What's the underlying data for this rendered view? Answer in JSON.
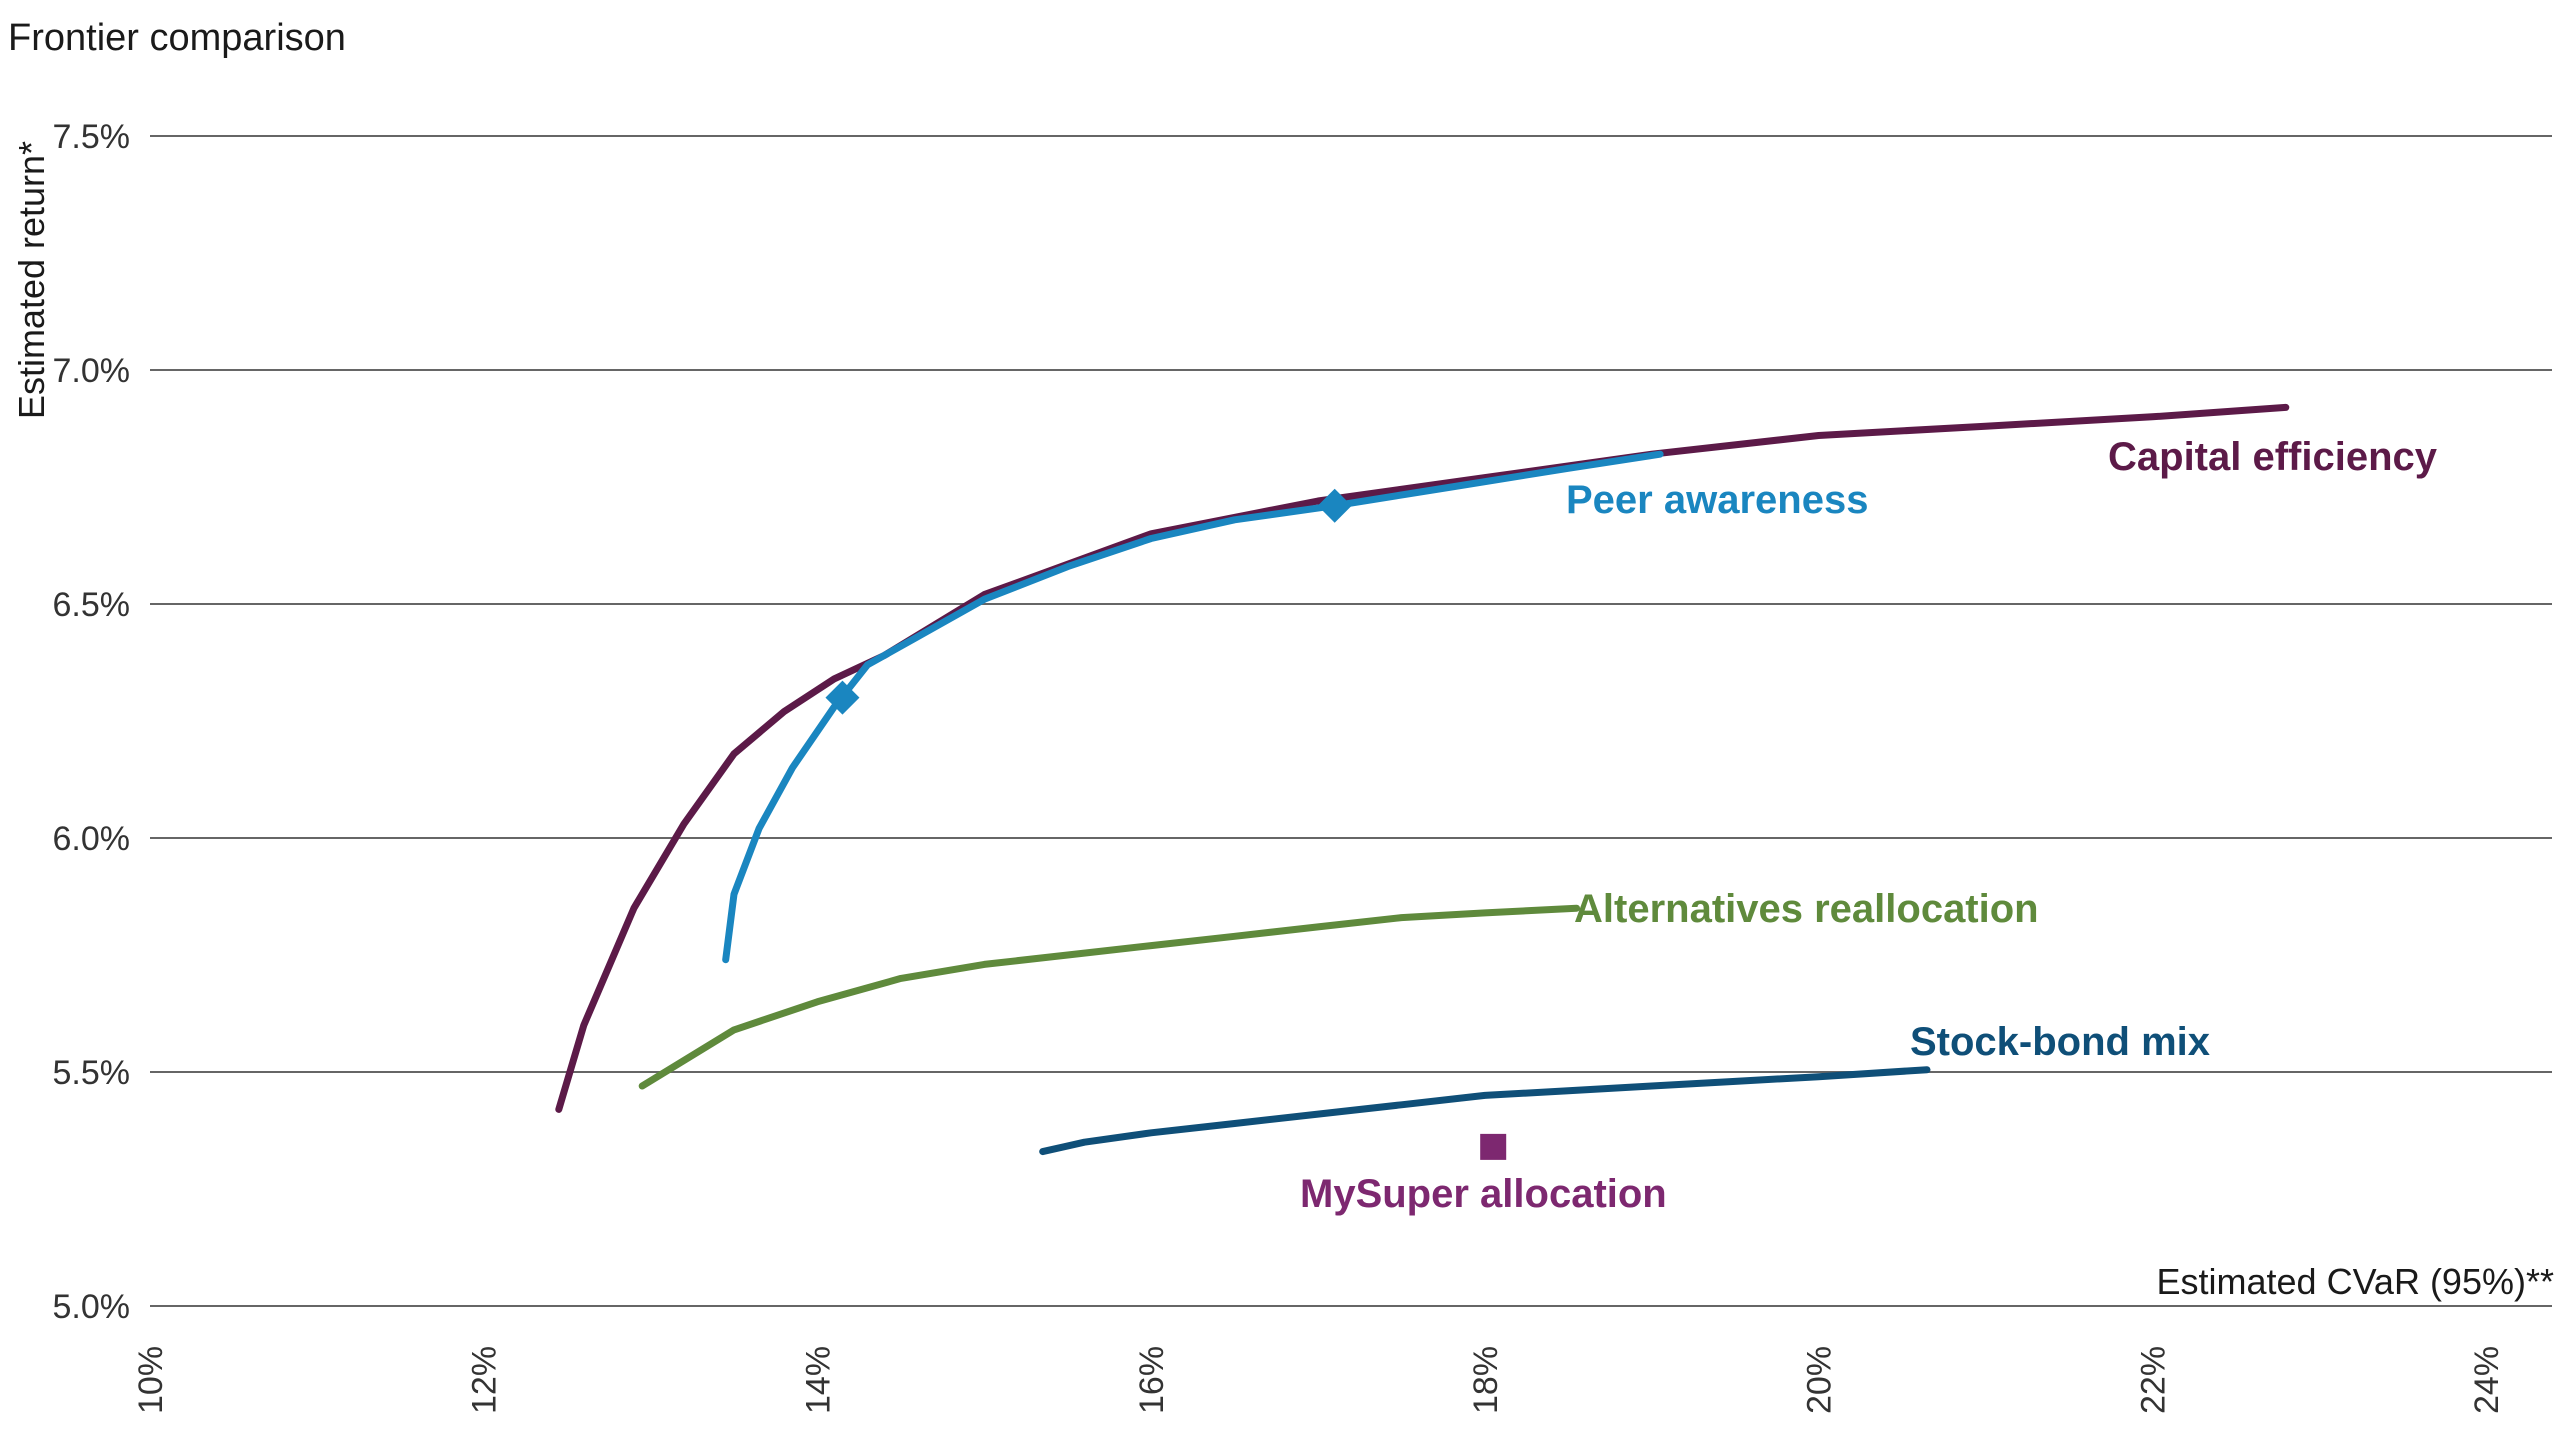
{
  "colors": {
    "capital_efficiency": "#5c1a48",
    "peer_awareness": "#1a86c0",
    "alternatives": "#5f8a3c",
    "stock_bond": "#0f4f78",
    "mysuper": "#7d2870"
  },
  "chart_data": {
    "type": "line",
    "title": "Frontier comparison",
    "xlabel": "Estimated CVaR (95%)**",
    "ylabel": "Estimated return*",
    "xlim": [
      10,
      24
    ],
    "ylim": [
      5.0,
      7.5
    ],
    "x_ticks": [
      "10%",
      "12%",
      "14%",
      "16%",
      "18%",
      "20%",
      "22%",
      "24%"
    ],
    "y_ticks": [
      "5.0%",
      "5.5%",
      "6.0%",
      "6.5%",
      "7.0%",
      "7.5%"
    ],
    "grid": "horizontal",
    "series": [
      {
        "name": "Capital efficiency",
        "color_key": "capital_efficiency",
        "x": [
          12.45,
          12.6,
          12.9,
          13.2,
          13.5,
          13.8,
          14.1,
          14.4,
          15.0,
          16.0,
          17.0,
          18.0,
          19.0,
          20.0,
          21.0,
          22.0,
          22.8
        ],
        "y": [
          5.42,
          5.6,
          5.85,
          6.03,
          6.18,
          6.27,
          6.34,
          6.39,
          6.52,
          6.65,
          6.72,
          6.77,
          6.82,
          6.86,
          6.88,
          6.9,
          6.92
        ]
      },
      {
        "name": "Peer awareness",
        "color_key": "peer_awareness",
        "x": [
          13.45,
          13.5,
          13.65,
          13.85,
          14.1,
          14.3,
          14.6,
          15.0,
          15.5,
          16.0,
          16.5,
          17.1,
          17.8,
          18.5,
          19.05
        ],
        "y": [
          5.74,
          5.88,
          6.02,
          6.15,
          6.28,
          6.37,
          6.43,
          6.51,
          6.58,
          6.64,
          6.68,
          6.71,
          6.75,
          6.79,
          6.82
        ]
      },
      {
        "name": "Alternatives reallocation",
        "color_key": "alternatives",
        "x": [
          12.95,
          13.5,
          14.0,
          14.5,
          15.0,
          15.5,
          16.0,
          16.5,
          17.0,
          17.5,
          18.0,
          18.55
        ],
        "y": [
          5.47,
          5.59,
          5.65,
          5.7,
          5.73,
          5.75,
          5.77,
          5.79,
          5.81,
          5.83,
          5.84,
          5.85
        ]
      },
      {
        "name": "Stock-bond mix",
        "color_key": "stock_bond",
        "x": [
          15.35,
          15.6,
          16.0,
          16.5,
          17.0,
          17.5,
          18.0,
          18.5,
          19.0,
          19.5,
          20.0,
          20.65
        ],
        "y": [
          5.33,
          5.35,
          5.37,
          5.39,
          5.41,
          5.43,
          5.45,
          5.46,
          5.47,
          5.48,
          5.49,
          5.505
        ]
      }
    ],
    "markers": [
      {
        "series": "Peer awareness",
        "shape": "diamond",
        "color_key": "peer_awareness",
        "x": 14.15,
        "y": 6.3
      },
      {
        "series": "Peer awareness",
        "shape": "diamond",
        "color_key": "peer_awareness",
        "x": 17.1,
        "y": 6.71
      },
      {
        "name": "MySuper allocation",
        "shape": "square",
        "color_key": "mysuper",
        "x": 18.05,
        "y": 5.34
      }
    ],
    "labels": {
      "capital_efficiency": "Capital efficiency",
      "peer_awareness": "Peer awareness",
      "alternatives": "Alternatives reallocation",
      "stock_bond": "Stock-bond mix",
      "mysuper": "MySuper allocation"
    }
  }
}
